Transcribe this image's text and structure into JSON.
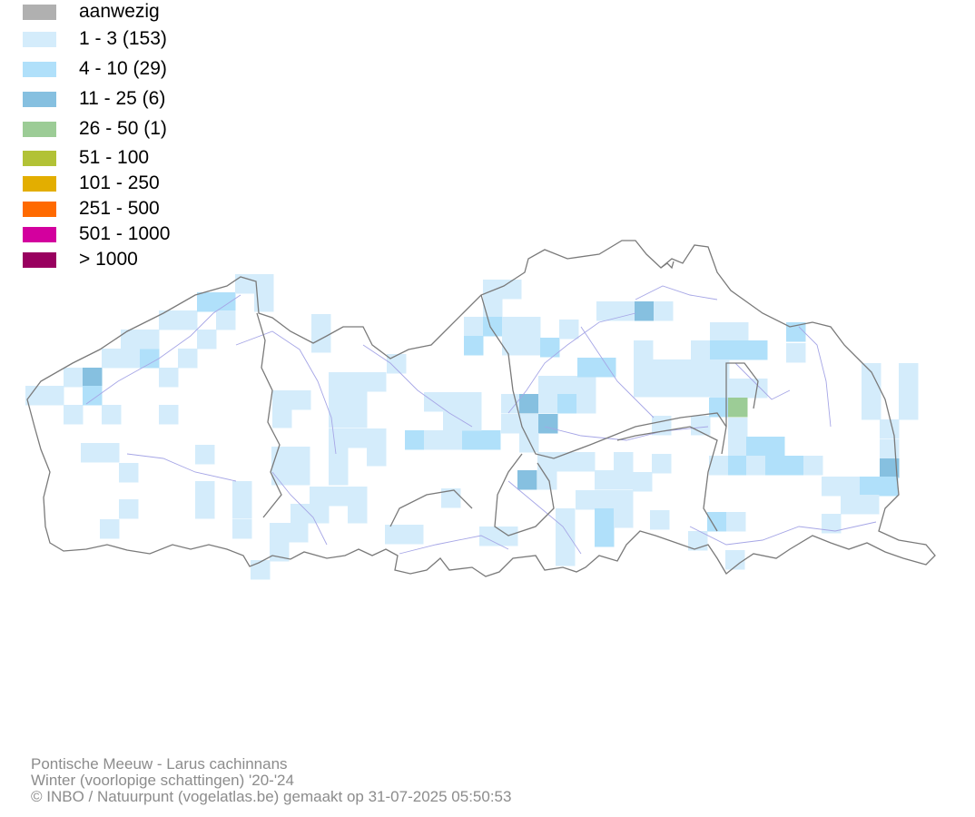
{
  "legend": [
    {
      "label": "aanwezig",
      "color": "#b0b0b0"
    },
    {
      "label": "1 - 3 (153)",
      "color": "#d4ecfb"
    },
    {
      "label": "4 - 10 (29)",
      "color": "#b0e0fa"
    },
    {
      "label": "11 - 25 (6)",
      "color": "#86c0e0"
    },
    {
      "label": "26 - 50 (1)",
      "color": "#9ccc96"
    },
    {
      "label": "51 - 100",
      "color": "#b2c236"
    },
    {
      "label": "101 - 250",
      "color": "#e3ae00"
    },
    {
      "label": "251 - 500",
      "color": "#ff6a00"
    },
    {
      "label": "501 - 1000",
      "color": "#d3009e"
    },
    {
      "label": "> 1000",
      "color": "#99005f"
    }
  ],
  "credits": {
    "species": "Pontische Meeuw - Larus cachinnans",
    "period": "Winter (voorlopige schattingen) '20-'24",
    "copyright": "© INBO / Natuurpunt (vogelatlas.be) gemaakt op 31-07-2025 05:50:53"
  },
  "map_colors": {
    "border": "#7a7a7a",
    "river": "#a6a6e6"
  }
}
